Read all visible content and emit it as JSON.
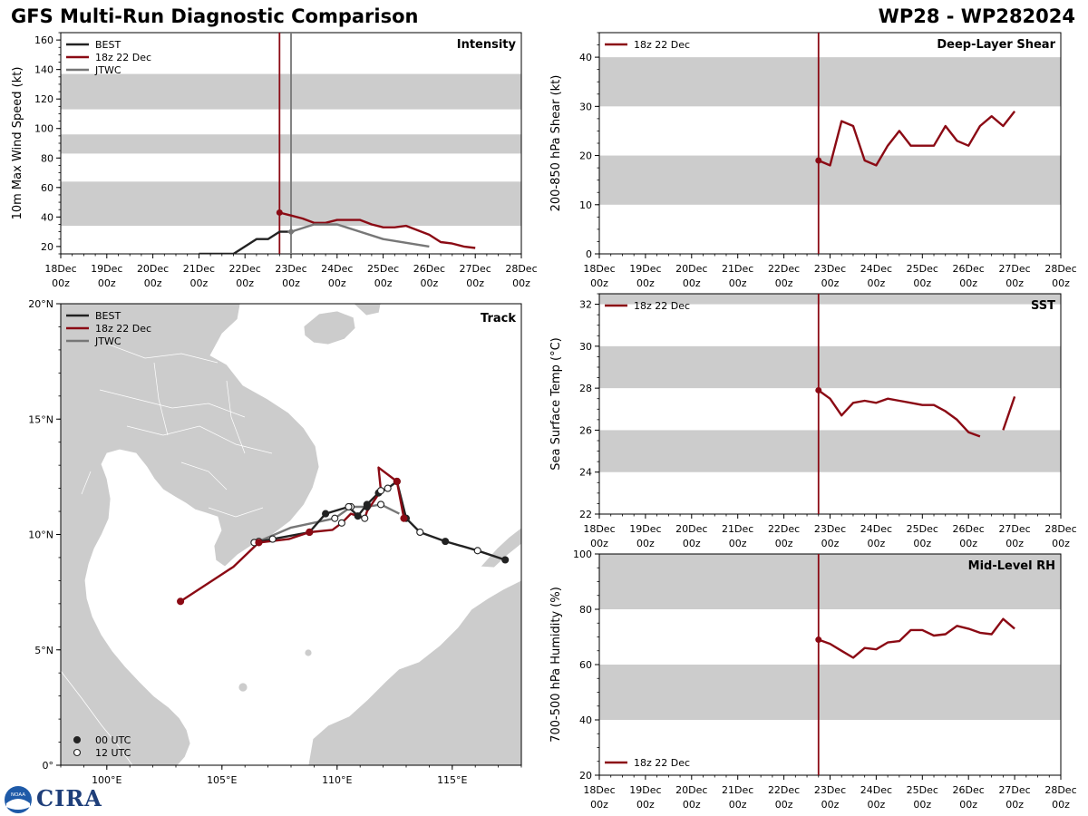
{
  "header": {
    "title": "GFS Multi-Run Diagnostic Comparison",
    "storm": "WP28 - WP282024"
  },
  "logo": {
    "text": "CIRA",
    "badge": "NOAA"
  },
  "colors": {
    "best": "#222222",
    "run": "#8b0a14",
    "jtwc": "#777777",
    "shade": "#cccccc",
    "land": "#cccccc"
  },
  "time_axis": {
    "labels": [
      "18Dec",
      "19Dec",
      "20Dec",
      "21Dec",
      "22Dec",
      "23Dec",
      "24Dec",
      "25Dec",
      "26Dec",
      "27Dec",
      "28Dec"
    ],
    "sublabel": "00z",
    "range": [
      0,
      10
    ],
    "init_time": 4.75
  },
  "chart_data": [
    {
      "id": "intensity",
      "type": "line",
      "title": "Intensity",
      "xlabel": "",
      "ylabel": "10m Max Wind Speed (kt)",
      "ylim": [
        15,
        165
      ],
      "yticks": [
        20,
        40,
        60,
        80,
        100,
        120,
        140,
        160
      ],
      "shaded_bands": [
        [
          34,
          64
        ],
        [
          83,
          96
        ],
        [
          113,
          137
        ]
      ],
      "vlines": [
        {
          "x": 4.75,
          "color": "run"
        },
        {
          "x": 5.0,
          "color": "jtwc"
        }
      ],
      "legend": [
        "BEST",
        "18z 22 Dec",
        "JTWC"
      ],
      "series": [
        {
          "name": "BEST",
          "color": "best",
          "x": [
            3.0,
            3.75,
            4.0,
            4.25,
            4.5,
            4.75,
            5.0
          ],
          "y": [
            15,
            15,
            20,
            25,
            25,
            30,
            30
          ]
        },
        {
          "name": "18z 22 Dec",
          "color": "run",
          "x": [
            4.75,
            5.0,
            5.25,
            5.5,
            5.75,
            6.0,
            6.25,
            6.5,
            6.75,
            7.0,
            7.25,
            7.5,
            7.75,
            8.0,
            8.25,
            8.5,
            8.75,
            9.0
          ],
          "y": [
            43,
            41,
            39,
            36,
            36,
            38,
            38,
            38,
            35,
            33,
            33,
            34,
            31,
            28,
            23,
            22,
            20,
            19
          ]
        },
        {
          "name": "JTWC",
          "color": "jtwc",
          "x": [
            5.0,
            5.5,
            6.0,
            7.0,
            8.0
          ],
          "y": [
            30,
            35,
            35,
            25,
            20
          ]
        }
      ]
    },
    {
      "id": "shear",
      "type": "line",
      "title": "Deep-Layer Shear",
      "xlabel": "",
      "ylabel": "200-850 hPa Shear (kt)",
      "ylim": [
        0,
        45
      ],
      "yticks": [
        0,
        10,
        20,
        30,
        40
      ],
      "shaded_bands": [
        [
          10,
          20
        ],
        [
          30,
          40
        ]
      ],
      "vlines": [
        {
          "x": 4.75,
          "color": "run"
        }
      ],
      "legend": [
        "18z 22 Dec"
      ],
      "series": [
        {
          "name": "18z 22 Dec",
          "color": "run",
          "x": [
            4.75,
            5.0,
            5.25,
            5.5,
            5.75,
            6.0,
            6.25,
            6.5,
            6.75,
            7.0,
            7.25,
            7.5,
            7.75,
            8.0,
            8.25,
            8.5,
            8.75,
            9.0
          ],
          "y": [
            19,
            18,
            27,
            26,
            19,
            18,
            22,
            25,
            22,
            22,
            22,
            26,
            23,
            22,
            26,
            28,
            26,
            29
          ]
        }
      ]
    },
    {
      "id": "sst",
      "type": "line",
      "title": "SST",
      "xlabel": "",
      "ylabel": "Sea Surface Temp (°C)",
      "ylim": [
        22,
        32.5
      ],
      "yticks": [
        22,
        24,
        26,
        28,
        30,
        32
      ],
      "shaded_bands": [
        [
          24,
          26
        ],
        [
          28,
          30
        ],
        [
          32,
          34
        ]
      ],
      "vlines": [
        {
          "x": 4.75,
          "color": "run"
        }
      ],
      "legend": [
        "18z 22 Dec"
      ],
      "series": [
        {
          "name": "18z 22 Dec",
          "color": "run",
          "x": [
            4.75,
            5.0,
            5.25,
            5.5,
            5.75,
            6.0,
            6.25,
            6.5,
            6.75,
            7.0,
            7.25,
            7.5,
            7.75,
            8.0,
            8.25
          ],
          "y": [
            27.9,
            27.5,
            26.7,
            27.3,
            27.4,
            27.3,
            27.5,
            27.4,
            27.3,
            27.2,
            27.2,
            26.9,
            26.5,
            25.9,
            25.7
          ]
        },
        {
          "name": "18z 22 Dec",
          "color": "run",
          "x": [
            8.75,
            9.0
          ],
          "y": [
            26.0,
            27.6
          ]
        }
      ]
    },
    {
      "id": "rh",
      "type": "line",
      "title": "Mid-Level RH",
      "xlabel": "",
      "ylabel": "700-500 hPa Humidity (%)",
      "ylim": [
        20,
        100
      ],
      "yticks": [
        20,
        40,
        60,
        80,
        100
      ],
      "shaded_bands": [
        [
          40,
          60
        ],
        [
          80,
          100
        ]
      ],
      "vlines": [
        {
          "x": 4.75,
          "color": "run"
        }
      ],
      "legend": [
        "18z 22 Dec"
      ],
      "series": [
        {
          "name": "18z 22 Dec",
          "color": "run",
          "x": [
            4.75,
            5.0,
            5.25,
            5.5,
            5.75,
            6.0,
            6.25,
            6.5,
            6.75,
            7.0,
            7.25,
            7.5,
            7.75,
            8.0,
            8.25,
            8.5,
            8.75,
            9.0
          ],
          "y": [
            69,
            67.5,
            65,
            62.5,
            66,
            65.5,
            68,
            68.5,
            72.5,
            72.5,
            70.5,
            71,
            74,
            73,
            71.5,
            71,
            76.5,
            73
          ]
        }
      ]
    },
    {
      "id": "track",
      "type": "scatter",
      "title": "Track",
      "xlabel": "",
      "ylabel": "",
      "xlim": [
        98,
        118
      ],
      "ylim": [
        0,
        20
      ],
      "xticks": [
        100,
        105,
        110,
        115
      ],
      "xtick_labels": [
        "100°E",
        "105°E",
        "110°E",
        "115°E"
      ],
      "yticks": [
        0,
        5,
        10,
        15,
        20
      ],
      "ytick_labels": [
        "0°",
        "5°N",
        "10°N",
        "15°N",
        "20°N"
      ],
      "legend": [
        "BEST",
        "18z 22 Dec",
        "JTWC"
      ],
      "marker_legend": [
        "00 UTC",
        "12 UTC"
      ],
      "series": [
        {
          "name": "BEST",
          "color": "best",
          "lon": [
            117.3,
            116.1,
            114.7,
            113.6,
            113.0,
            112.6,
            112.2,
            111.8,
            111.3,
            110.9,
            110.5,
            109.5,
            108.8,
            107.2,
            106.4
          ],
          "lat": [
            8.9,
            9.3,
            9.7,
            10.1,
            10.7,
            12.3,
            12.0,
            11.8,
            11.3,
            10.8,
            11.2,
            10.9,
            10.1,
            9.8,
            9.65
          ],
          "utc": [
            0,
            12,
            0,
            12,
            0,
            0,
            12,
            0,
            0,
            0,
            12,
            0,
            0,
            12,
            12
          ]
        },
        {
          "name": "18z 22 Dec",
          "color": "run",
          "lon": [
            112.9,
            112.6,
            111.8,
            111.9,
            111.3,
            111.2,
            110.6,
            110.2,
            109.8,
            108.8,
            107.9,
            106.6,
            105.5,
            103.2
          ],
          "lat": [
            10.7,
            12.3,
            12.9,
            11.9,
            11.0,
            10.7,
            10.9,
            10.5,
            10.2,
            10.1,
            9.8,
            9.65,
            8.6,
            7.1
          ],
          "utc": [
            0,
            0,
            -1,
            12,
            -1,
            12,
            -1,
            12,
            -1,
            0,
            -1,
            0,
            -1,
            0
          ]
        },
        {
          "name": "JTWC",
          "color": "jtwc",
          "lon": [
            112.7,
            111.9,
            111.3,
            110.6,
            109.9,
            108.0,
            106.6
          ],
          "lat": [
            10.9,
            11.3,
            11.2,
            11.2,
            10.7,
            10.3,
            9.7
          ],
          "utc": [
            -1,
            12,
            0,
            12,
            12,
            -1,
            12
          ]
        }
      ]
    }
  ]
}
